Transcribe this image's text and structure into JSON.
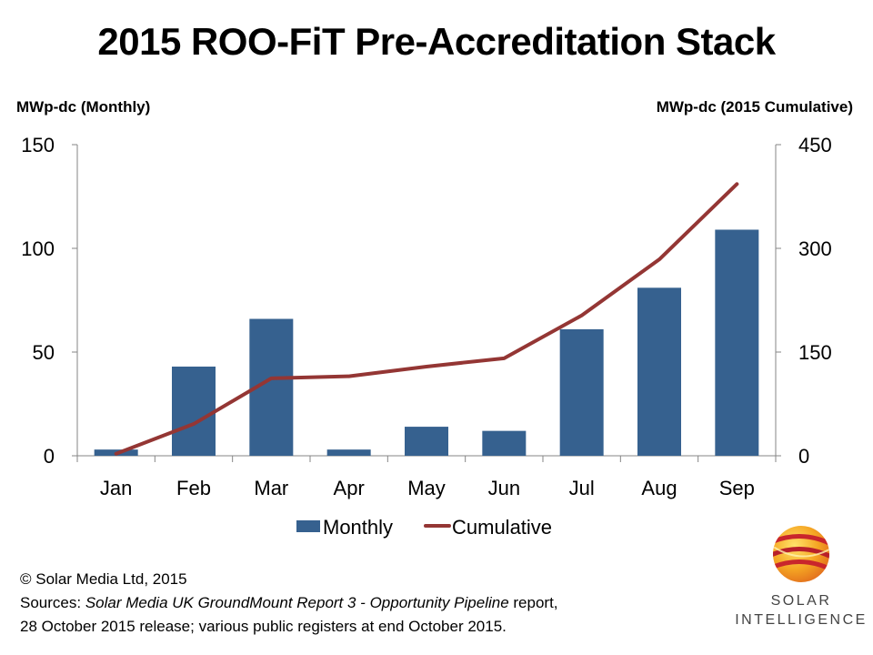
{
  "header": {
    "title": "2015 ROO-FiT Pre-Accreditation Stack",
    "left_unit": "MWp-dc  (Monthly)",
    "right_unit": "MWp-dc  (2015 Cumulative)"
  },
  "colors": {
    "bar": "#36618F",
    "line": "#943634",
    "axis": "#868686"
  },
  "chart_data": {
    "type": "bar",
    "categories": [
      "Jan",
      "Feb",
      "Mar",
      "Apr",
      "May",
      "Jun",
      "Jul",
      "Aug",
      "Sep"
    ],
    "series": [
      {
        "name": "Monthly",
        "type": "bar",
        "axis": "left",
        "values": [
          3,
          43,
          66,
          3,
          14,
          12,
          61,
          81,
          109
        ]
      },
      {
        "name": "Cumulative",
        "type": "line",
        "axis": "right",
        "values": [
          3,
          46,
          112,
          115,
          129,
          141,
          203,
          284,
          393
        ]
      }
    ],
    "y_left": {
      "min": 0,
      "max": 150,
      "ticks": [
        0,
        50,
        100,
        150
      ]
    },
    "y_right": {
      "min": 0,
      "max": 450,
      "ticks": [
        0,
        150,
        300,
        450
      ]
    },
    "grid": false,
    "legend": "bottom"
  },
  "footer": {
    "copyright": "© Solar Media Ltd, 2015",
    "sources_prefix": "Sources: ",
    "sources_italic": "Solar Media UK GroundMount Report 3 - Opportunity Pipeline",
    "sources_suffix": " report,",
    "line3": "28 October 2015 release; various public registers at end October 2015."
  },
  "brand": {
    "line1": "SOLAR",
    "line2": "INTELLIGENCE",
    "logo": "solar-intelligence-logo"
  }
}
